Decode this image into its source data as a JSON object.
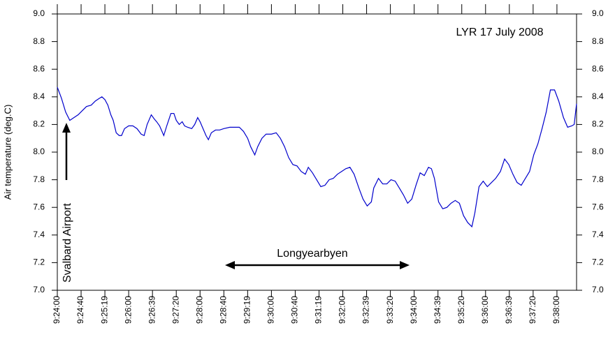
{
  "chart_data": {
    "type": "line",
    "title": "LYR 17 July 2008",
    "y_label": "Air temperature (deg.C)",
    "annotations": [
      "Longyearbyen",
      "Svalbard Airport"
    ],
    "xlim": [
      0,
      873
    ],
    "xticks": [
      {
        "value": 0,
        "label": "9:24:00"
      },
      {
        "value": 40,
        "label": "9:24:40"
      },
      {
        "value": 80,
        "label": "9:25:19"
      },
      {
        "value": 120,
        "label": "9:26:00"
      },
      {
        "value": 160,
        "label": "9:26:39"
      },
      {
        "value": 200,
        "label": "9:27:20"
      },
      {
        "value": 240,
        "label": "9:28:00"
      },
      {
        "value": 280,
        "label": "9:28:40"
      },
      {
        "value": 320,
        "label": "9:29:19"
      },
      {
        "value": 360,
        "label": "9:30:00"
      },
      {
        "value": 400,
        "label": "9:30:40"
      },
      {
        "value": 440,
        "label": "9:31:19"
      },
      {
        "value": 480,
        "label": "9:32:00"
      },
      {
        "value": 520,
        "label": "9:32:39"
      },
      {
        "value": 560,
        "label": "9:33:20"
      },
      {
        "value": 600,
        "label": "9:34:00"
      },
      {
        "value": 640,
        "label": "9:34:39"
      },
      {
        "value": 680,
        "label": "9:35:20"
      },
      {
        "value": 720,
        "label": "9:36:00"
      },
      {
        "value": 760,
        "label": "9:36:39"
      },
      {
        "value": 800,
        "label": "9:37:20"
      },
      {
        "value": 840,
        "label": "9:38:00"
      }
    ],
    "ylim": [
      7,
      9
    ],
    "yticks": [
      {
        "value": 7,
        "label": "7.0"
      },
      7.2,
      7.4,
      7.6,
      7.8,
      {
        "value": 8,
        "label": "8.0"
      },
      8.2,
      8.4,
      8.6,
      8.8,
      {
        "value": 9,
        "label": "9.0"
      }
    ],
    "series": [
      {
        "color": "#0000cc",
        "x": [
          0,
          7,
          14,
          21,
          28,
          35,
          42,
          49,
          57,
          64,
          71,
          75,
          80,
          85,
          90,
          94,
          99,
          104,
          108,
          113,
          120,
          127,
          134,
          141,
          146,
          151,
          158,
          163,
          167,
          172,
          179,
          184,
          191,
          196,
          200,
          205,
          210,
          214,
          219,
          226,
          231,
          236,
          240,
          245,
          250,
          254,
          259,
          266,
          273,
          280,
          290,
          299,
          306,
          313,
          320,
          325,
          332,
          337,
          344,
          351,
          360,
          368,
          375,
          382,
          389,
          396,
          403,
          410,
          417,
          422,
          429,
          436,
          443,
          450,
          457,
          464,
          471,
          478,
          485,
          492,
          499,
          507,
          514,
          521,
          528,
          532,
          540,
          547,
          554,
          561,
          568,
          575,
          582,
          589,
          596,
          603,
          610,
          617,
          624,
          629,
          634,
          641,
          648,
          655,
          662,
          669,
          676,
          683,
          690,
          697,
          702,
          709,
          716,
          723,
          730,
          737,
          745,
          752,
          759,
          766,
          773,
          780,
          787,
          794,
          801,
          808,
          815,
          822,
          829,
          836,
          843,
          851,
          858,
          865,
          869,
          873
        ],
        "values": [
          8.47,
          8.39,
          8.29,
          8.23,
          8.25,
          8.27,
          8.3,
          8.33,
          8.34,
          8.37,
          8.39,
          8.4,
          8.38,
          8.34,
          8.27,
          8.23,
          8.14,
          8.12,
          8.12,
          8.17,
          8.19,
          8.19,
          8.17,
          8.13,
          8.12,
          8.2,
          8.27,
          8.24,
          8.22,
          8.19,
          8.12,
          8.19,
          8.28,
          8.28,
          8.23,
          8.2,
          8.22,
          8.19,
          8.18,
          8.17,
          8.2,
          8.25,
          8.22,
          8.17,
          8.12,
          8.09,
          8.14,
          8.16,
          8.16,
          8.17,
          8.18,
          8.18,
          8.18,
          8.15,
          8.1,
          8.04,
          7.98,
          8.04,
          8.1,
          8.13,
          8.13,
          8.14,
          8.1,
          8.04,
          7.96,
          7.91,
          7.9,
          7.86,
          7.84,
          7.89,
          7.85,
          7.8,
          7.75,
          7.76,
          7.8,
          7.81,
          7.84,
          7.86,
          7.88,
          7.89,
          7.84,
          7.74,
          7.66,
          7.61,
          7.64,
          7.74,
          7.81,
          7.77,
          7.77,
          7.8,
          7.79,
          7.74,
          7.69,
          7.63,
          7.66,
          7.76,
          7.85,
          7.83,
          7.89,
          7.88,
          7.81,
          7.64,
          7.59,
          7.6,
          7.63,
          7.65,
          7.63,
          7.54,
          7.49,
          7.46,
          7.56,
          7.75,
          7.79,
          7.75,
          7.78,
          7.81,
          7.86,
          7.95,
          7.91,
          7.84,
          7.78,
          7.76,
          7.81,
          7.86,
          7.98,
          8.06,
          8.17,
          8.29,
          8.45,
          8.45,
          8.37,
          8.25,
          8.18,
          8.19,
          8.2,
          8.35
        ]
      }
    ]
  }
}
